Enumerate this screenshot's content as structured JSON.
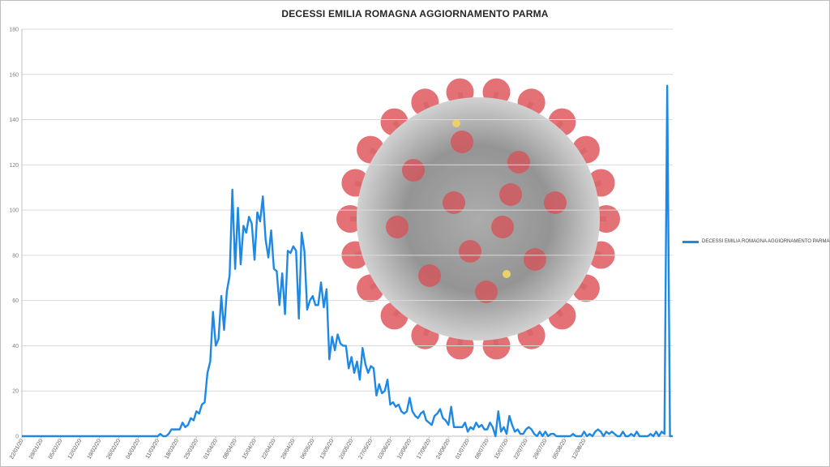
{
  "chart_data": {
    "type": "line",
    "title": "DECESSI EMILIA ROMAGNA AGGIORNAMENTO PARMA",
    "xlabel": "",
    "ylabel": "",
    "ylim": [
      0,
      180
    ],
    "y_ticks": [
      0,
      20,
      40,
      60,
      80,
      100,
      120,
      140,
      160,
      180
    ],
    "grid": "horizontal",
    "legend_position": "right",
    "x_tick_labels": [
      "22/01/20",
      "29/01/20",
      "05/02/20",
      "12/02/20",
      "19/02/20",
      "26/02/20",
      "04/03/20",
      "11/03/20",
      "18/03/20",
      "25/03/20",
      "01/04/20",
      "08/04/20",
      "15/04/20",
      "22/04/20",
      "29/04/20",
      "06/05/20",
      "13/05/20",
      "20/05/20",
      "27/05/20",
      "03/06/20",
      "10/06/20",
      "17/06/20",
      "24/06/20",
      "01/07/20",
      "08/07/20",
      "15/07/20",
      "22/07/20",
      "29/07/20",
      "05/08/20",
      "12/08/20"
    ],
    "series": [
      {
        "name": "DECESSI EMILIA ROMAGNA AGGIORNAMENTO PARMA",
        "color": "#1e88e5",
        "x_start": "22/01/20",
        "x_step": "1 day",
        "values": [
          0,
          0,
          0,
          0,
          0,
          0,
          0,
          0,
          0,
          0,
          0,
          0,
          0,
          0,
          0,
          0,
          0,
          0,
          0,
          0,
          0,
          0,
          0,
          0,
          0,
          0,
          0,
          0,
          0,
          0,
          0,
          0,
          0,
          0,
          0,
          0,
          0,
          0,
          0,
          0,
          0,
          0,
          0,
          0,
          0,
          0,
          0,
          0,
          0,
          0,
          1,
          0,
          0,
          1,
          3,
          3,
          3,
          3,
          6,
          4,
          5,
          8,
          7,
          11,
          10,
          14,
          15,
          28,
          33,
          55,
          40,
          43,
          62,
          47,
          64,
          71,
          109,
          74,
          101,
          76,
          93,
          90,
          97,
          94,
          78,
          99,
          95,
          106,
          87,
          79,
          91,
          74,
          73,
          58,
          72,
          54,
          82,
          81,
          84,
          82,
          52,
          90,
          82,
          56,
          60,
          62,
          58,
          58,
          68,
          57,
          65,
          34,
          44,
          38,
          45,
          41,
          40,
          40,
          30,
          35,
          28,
          33,
          25,
          39,
          32,
          28,
          31,
          30,
          18,
          23,
          19,
          20,
          25,
          14,
          15,
          13,
          14,
          11,
          10,
          11,
          17,
          11,
          9,
          8,
          10,
          11,
          7,
          6,
          5,
          9,
          10,
          12,
          8,
          7,
          5,
          13,
          4,
          4,
          4,
          4,
          6,
          2,
          4,
          3,
          6,
          4,
          5,
          3,
          3,
          6,
          4,
          0,
          11,
          2,
          4,
          1,
          9,
          5,
          2,
          3,
          1,
          1,
          3,
          4,
          3,
          1,
          0,
          2,
          0,
          2,
          0,
          1,
          1,
          0,
          0,
          0,
          0,
          0,
          0,
          1,
          0,
          0,
          0,
          2,
          0,
          1,
          0,
          2,
          3,
          2,
          0,
          2,
          1,
          2,
          1,
          0,
          0,
          2,
          0,
          0,
          1,
          0,
          2,
          0,
          0,
          0,
          0,
          1,
          0,
          2,
          0,
          2,
          1,
          155,
          0,
          0
        ]
      }
    ]
  }
}
